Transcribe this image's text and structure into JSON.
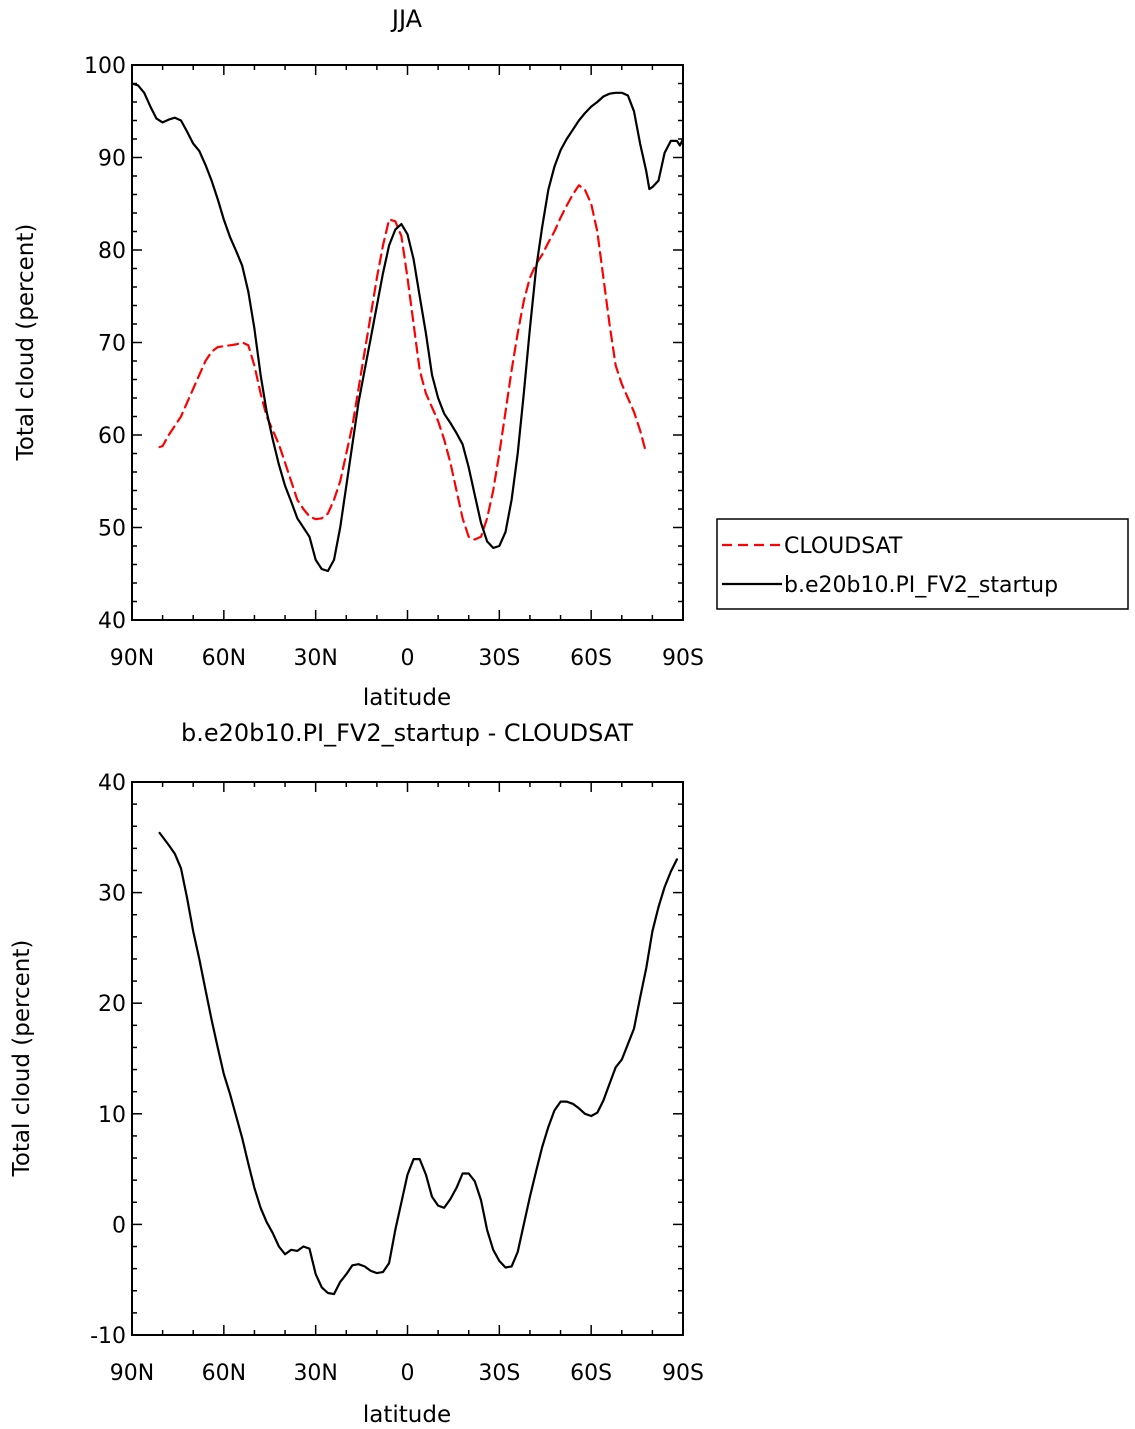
{
  "chart_data": [
    {
      "type": "line",
      "title": "JJA",
      "xlabel": "latitude",
      "ylabel": "Total cloud (percent)",
      "xlim": [
        90,
        -90
      ],
      "ylim": [
        40,
        100
      ],
      "x_ticks": [
        90,
        60,
        30,
        0,
        -30,
        -60,
        -90
      ],
      "x_tick_labels": [
        "90N",
        "60N",
        "30N",
        "0",
        "30S",
        "60S",
        "90S"
      ],
      "y_ticks": [
        40,
        50,
        60,
        70,
        80,
        90,
        100
      ],
      "y_tick_labels": [
        "40",
        "50",
        "60",
        "70",
        "80",
        "90",
        "100"
      ],
      "grid": false,
      "legend": "right",
      "series": [
        {
          "name": "CLOUDSAT",
          "color": "#ff0000",
          "style": "dashed",
          "points": [
            [
              81,
              58.7
            ],
            [
              80,
              58.8
            ],
            [
              78,
              60
            ],
            [
              76,
              61
            ],
            [
              74,
              62
            ],
            [
              72,
              63.5
            ],
            [
              70,
              65
            ],
            [
              68,
              66.5
            ],
            [
              66,
              68
            ],
            [
              64,
              69
            ],
            [
              62,
              69.5
            ],
            [
              60,
              69.6
            ],
            [
              58,
              69.7
            ],
            [
              56,
              69.8
            ],
            [
              54,
              70
            ],
            [
              52,
              69.7
            ],
            [
              50,
              67.5
            ],
            [
              48,
              64.5
            ],
            [
              46,
              62
            ],
            [
              44,
              60.5
            ],
            [
              42,
              59
            ],
            [
              40,
              57
            ],
            [
              38,
              55
            ],
            [
              36,
              53
            ],
            [
              34,
              52
            ],
            [
              32,
              51.2
            ],
            [
              30,
              50.9
            ],
            [
              28,
              51
            ],
            [
              26,
              51.5
            ],
            [
              24,
              53
            ],
            [
              22,
              55
            ],
            [
              20,
              58
            ],
            [
              18,
              61
            ],
            [
              16,
              65
            ],
            [
              14,
              69
            ],
            [
              12,
              73
            ],
            [
              10,
              77
            ],
            [
              8,
              80.5
            ],
            [
              6,
              83.3
            ],
            [
              4,
              83.1
            ],
            [
              2,
              81.5
            ],
            [
              0,
              77
            ],
            [
              -2,
              72
            ],
            [
              -4,
              67
            ],
            [
              -6,
              64.5
            ],
            [
              -8,
              63
            ],
            [
              -10,
              61.5
            ],
            [
              -12,
              59.5
            ],
            [
              -14,
              57
            ],
            [
              -16,
              54
            ],
            [
              -18,
              51
            ],
            [
              -20,
              49
            ],
            [
              -22,
              48.7
            ],
            [
              -24,
              49
            ],
            [
              -26,
              51
            ],
            [
              -28,
              54
            ],
            [
              -30,
              58
            ],
            [
              -32,
              62.5
            ],
            [
              -34,
              67
            ],
            [
              -36,
              71
            ],
            [
              -38,
              74.5
            ],
            [
              -40,
              77
            ],
            [
              -42,
              78.5
            ],
            [
              -44,
              79.5
            ],
            [
              -46,
              80.8
            ],
            [
              -48,
              82
            ],
            [
              -50,
              83.5
            ],
            [
              -52,
              84.8
            ],
            [
              -54,
              86
            ],
            [
              -56,
              87
            ],
            [
              -58,
              86.5
            ],
            [
              -60,
              85
            ],
            [
              -62,
              82
            ],
            [
              -64,
              77
            ],
            [
              -66,
              72
            ],
            [
              -68,
              67.5
            ],
            [
              -70,
              65.5
            ],
            [
              -72,
              64
            ],
            [
              -74,
              62.5
            ],
            [
              -76,
              60.5
            ],
            [
              -78,
              58
            ]
          ]
        },
        {
          "name": "b.e20b10.PI_FV2_startup",
          "color": "#000000",
          "style": "solid",
          "points": [
            [
              90,
              98
            ],
            [
              88,
              97.8
            ],
            [
              86,
              97
            ],
            [
              84,
              95.5
            ],
            [
              82,
              94.2
            ],
            [
              80,
              93.8
            ],
            [
              78,
              94.1
            ],
            [
              76,
              94.3
            ],
            [
              74,
              94
            ],
            [
              72,
              92.8
            ],
            [
              70,
              91.5
            ],
            [
              68,
              90.7
            ],
            [
              66,
              89.2
            ],
            [
              64,
              87.5
            ],
            [
              62,
              85.5
            ],
            [
              60,
              83.3
            ],
            [
              58,
              81.4
            ],
            [
              56,
              79.9
            ],
            [
              54,
              78.3
            ],
            [
              52,
              75.5
            ],
            [
              50,
              71.5
            ],
            [
              48,
              66.5
            ],
            [
              46,
              62.5
            ],
            [
              44,
              59.5
            ],
            [
              42,
              56.8
            ],
            [
              40,
              54.5
            ],
            [
              38,
              52.8
            ],
            [
              36,
              51
            ],
            [
              34,
              50
            ],
            [
              32,
              49
            ],
            [
              30,
              46.5
            ],
            [
              28,
              45.5
            ],
            [
              26,
              45.3
            ],
            [
              24,
              46.5
            ],
            [
              22,
              50
            ],
            [
              20,
              54.5
            ],
            [
              18,
              59
            ],
            [
              16,
              63.5
            ],
            [
              14,
              67
            ],
            [
              12,
              70.5
            ],
            [
              10,
              74
            ],
            [
              8,
              77.5
            ],
            [
              6,
              80.5
            ],
            [
              4,
              82.2
            ],
            [
              2,
              82.8
            ],
            [
              0,
              81.7
            ],
            [
              -2,
              79
            ],
            [
              -4,
              75
            ],
            [
              -6,
              71
            ],
            [
              -8,
              66.5
            ],
            [
              -10,
              64
            ],
            [
              -12,
              62.3
            ],
            [
              -14,
              61.3
            ],
            [
              -16,
              60.2
            ],
            [
              -18,
              59
            ],
            [
              -20,
              56.5
            ],
            [
              -22,
              53.5
            ],
            [
              -24,
              50.5
            ],
            [
              -26,
              48.5
            ],
            [
              -28,
              47.8
            ],
            [
              -30,
              48
            ],
            [
              -32,
              49.5
            ],
            [
              -34,
              53
            ],
            [
              -36,
              58
            ],
            [
              -38,
              64.5
            ],
            [
              -40,
              71.5
            ],
            [
              -42,
              78
            ],
            [
              -44,
              82.5
            ],
            [
              -46,
              86.5
            ],
            [
              -48,
              89
            ],
            [
              -50,
              90.8
            ],
            [
              -52,
              92
            ],
            [
              -54,
              93
            ],
            [
              -56,
              94
            ],
            [
              -58,
              94.8
            ],
            [
              -60,
              95.5
            ],
            [
              -62,
              96
            ],
            [
              -64,
              96.6
            ],
            [
              -66,
              96.9
            ],
            [
              -68,
              97
            ],
            [
              -70,
              97
            ],
            [
              -72,
              96.7
            ],
            [
              -74,
              95
            ],
            [
              -76,
              91.5
            ],
            [
              -78,
              88.5
            ],
            [
              -79,
              86.6
            ],
            [
              -80,
              86.8
            ],
            [
              -82,
              87.5
            ],
            [
              -84,
              90.5
            ],
            [
              -86,
              91.8
            ],
            [
              -88,
              91.8
            ],
            [
              -89,
              91.3
            ],
            [
              -90,
              92
            ]
          ]
        }
      ]
    },
    {
      "type": "line",
      "title": "b.e20b10.PI_FV2_startup - CLOUDSAT",
      "xlabel": "latitude",
      "ylabel": "Total cloud (percent)",
      "xlim": [
        90,
        -90
      ],
      "ylim": [
        -10,
        40
      ],
      "x_ticks": [
        90,
        60,
        30,
        0,
        -30,
        -60,
        -90
      ],
      "x_tick_labels": [
        "90N",
        "60N",
        "30N",
        "0",
        "30S",
        "60S",
        "90S"
      ],
      "y_ticks": [
        -10,
        0,
        10,
        20,
        30,
        40
      ],
      "y_tick_labels": [
        "-10",
        "0",
        "10",
        "20",
        "30",
        "40"
      ],
      "grid": false,
      "series": [
        {
          "color": "#000000",
          "style": "solid",
          "points": [
            [
              81,
              35.4
            ],
            [
              78,
              34.3
            ],
            [
              76,
              33.5
            ],
            [
              74,
              32.2
            ],
            [
              72,
              29.5
            ],
            [
              70,
              26.5
            ],
            [
              68,
              24
            ],
            [
              66,
              21.2
            ],
            [
              64,
              18.5
            ],
            [
              62,
              16
            ],
            [
              60,
              13.6
            ],
            [
              58,
              11.8
            ],
            [
              56,
              9.8
            ],
            [
              54,
              7.8
            ],
            [
              52,
              5.5
            ],
            [
              50,
              3.3
            ],
            [
              48,
              1.5
            ],
            [
              46,
              0.2
            ],
            [
              44,
              -0.8
            ],
            [
              42,
              -2
            ],
            [
              40,
              -2.7
            ],
            [
              38,
              -2.3
            ],
            [
              36,
              -2.4
            ],
            [
              34,
              -2
            ],
            [
              32,
              -2.2
            ],
            [
              30,
              -4.5
            ],
            [
              28,
              -5.7
            ],
            [
              26,
              -6.2
            ],
            [
              24,
              -6.3
            ],
            [
              22,
              -5.2
            ],
            [
              20,
              -4.5
            ],
            [
              18,
              -3.7
            ],
            [
              16,
              -3.6
            ],
            [
              14,
              -3.8
            ],
            [
              12,
              -4.2
            ],
            [
              10,
              -4.4
            ],
            [
              8,
              -4.3
            ],
            [
              6,
              -3.5
            ],
            [
              4,
              -0.5
            ],
            [
              2,
              2
            ],
            [
              0,
              4.5
            ],
            [
              -2,
              5.9
            ],
            [
              -4,
              5.9
            ],
            [
              -6,
              4.5
            ],
            [
              -8,
              2.5
            ],
            [
              -10,
              1.7
            ],
            [
              -12,
              1.5
            ],
            [
              -14,
              2.3
            ],
            [
              -16,
              3.3
            ],
            [
              -18,
              4.6
            ],
            [
              -20,
              4.6
            ],
            [
              -22,
              3.9
            ],
            [
              -24,
              2.2
            ],
            [
              -26,
              -0.5
            ],
            [
              -28,
              -2.3
            ],
            [
              -30,
              -3.3
            ],
            [
              -32,
              -3.9
            ],
            [
              -34,
              -3.8
            ],
            [
              -36,
              -2.5
            ],
            [
              -38,
              0
            ],
            [
              -40,
              2.5
            ],
            [
              -42,
              4.8
            ],
            [
              -44,
              7
            ],
            [
              -46,
              8.8
            ],
            [
              -48,
              10.3
            ],
            [
              -50,
              11.1
            ],
            [
              -52,
              11.1
            ],
            [
              -54,
              10.9
            ],
            [
              -56,
              10.5
            ],
            [
              -58,
              10
            ],
            [
              -60,
              9.8
            ],
            [
              -62,
              10.1
            ],
            [
              -64,
              11.2
            ],
            [
              -66,
              12.7
            ],
            [
              -68,
              14.2
            ],
            [
              -70,
              14.9
            ],
            [
              -72,
              16.3
            ],
            [
              -74,
              17.7
            ],
            [
              -76,
              20.5
            ],
            [
              -78,
              23.2
            ],
            [
              -80,
              26.5
            ],
            [
              -82,
              28.7
            ],
            [
              -84,
              30.5
            ],
            [
              -86,
              31.9
            ],
            [
              -88,
              33
            ]
          ]
        }
      ]
    }
  ]
}
